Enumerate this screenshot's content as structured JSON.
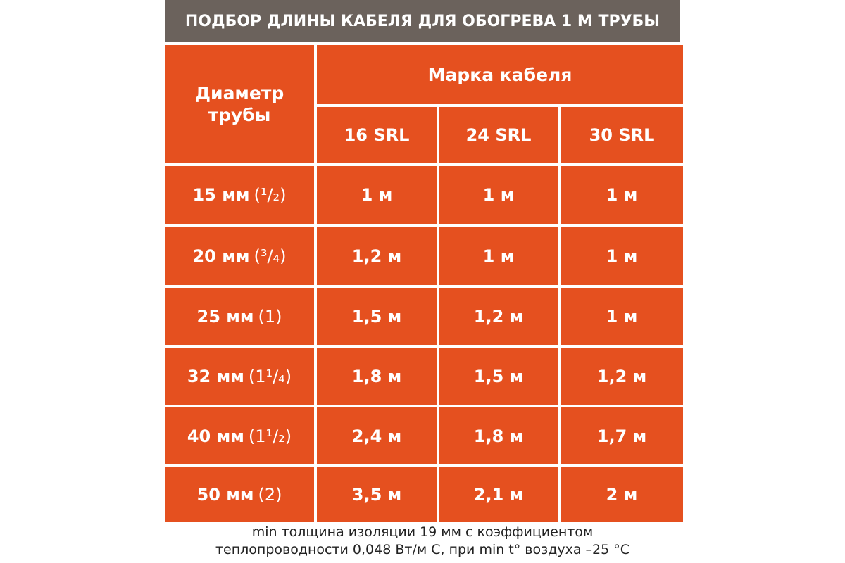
{
  "title": "ПОДБОР ДЛИНЫ КАБЕЛЯ ДЛЯ ОБОГРЕВА 1 М ТРУБЫ",
  "header": {
    "diameter_line1": "Диаметр",
    "diameter_line2": "трубы",
    "brand": "Марка кабеля",
    "columns": [
      "16 SRL",
      "24 SRL",
      "30 SRL"
    ]
  },
  "rows": [
    {
      "diameter": "15 мм",
      "inch": "(¹/₂)",
      "values": [
        "1 м",
        "1 м",
        "1 м"
      ]
    },
    {
      "diameter": "20 мм",
      "inch": "(³/₄)",
      "values": [
        "1,2 м",
        "1 м",
        "1 м"
      ]
    },
    {
      "diameter": "25 мм",
      "inch": "(1)",
      "values": [
        "1,5 м",
        "1,2 м",
        "1 м"
      ]
    },
    {
      "diameter": "32 мм",
      "inch": "(1¹/₄)",
      "values": [
        "1,8 м",
        "1,5 м",
        "1,2 м"
      ]
    },
    {
      "diameter": "40 мм",
      "inch": "(1¹/₂)",
      "values": [
        "2,4 м",
        "1,8 м",
        "1,7 м"
      ]
    },
    {
      "diameter": "50 мм",
      "inch": "(2)",
      "values": [
        "3,5 м",
        "2,1 м",
        "2 м"
      ]
    }
  ],
  "note": {
    "line1": "min толщина изоляции 19 мм с коэффициентом",
    "line2": "теплопроводности 0,048 Вт/м С, при min t° воздуха –25 °С"
  },
  "colors": {
    "title_bg": "#6b625c",
    "cell_bg": "#e5501f",
    "text": "#ffffff"
  }
}
